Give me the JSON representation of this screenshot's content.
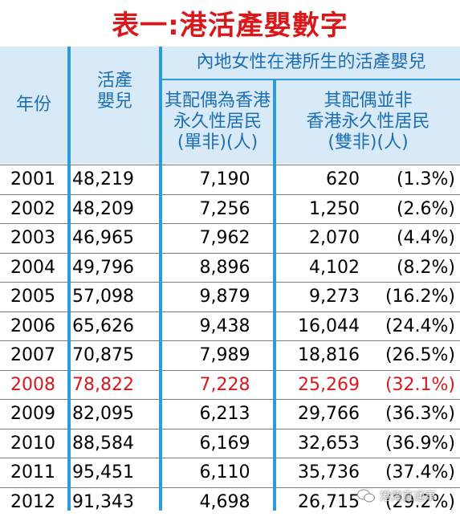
{
  "title": "表一:港活產嬰數字",
  "headers": {
    "year": "年份",
    "births_line1": "活產",
    "births_line2": "嬰兒",
    "mainland_group": "內地女性在港所生的活產嬰兒",
    "single_line1": "其配偶為香港",
    "single_line2": "永久性居民",
    "single_line3": "(單非)(人)",
    "double_line1": "其配偶並非",
    "double_line2": "香港永久性居民",
    "double_line3": "(雙非)(人)"
  },
  "rows": [
    {
      "year": "2001",
      "births": "48,219",
      "single": "7,190",
      "double": "620",
      "pct": "(1.3%)",
      "highlight": false
    },
    {
      "year": "2002",
      "births": "48,209",
      "single": "7,256",
      "double": "1,250",
      "pct": "(2.6%)",
      "highlight": false
    },
    {
      "year": "2003",
      "births": "46,965",
      "single": "7,962",
      "double": "2,070",
      "pct": "(4.4%)",
      "highlight": false
    },
    {
      "year": "2004",
      "births": "49,796",
      "single": "8,896",
      "double": "4,102",
      "pct": "(8.2%)",
      "highlight": false
    },
    {
      "year": "2005",
      "births": "57,098",
      "single": "9,879",
      "double": "9,273",
      "pct": "(16.2%)",
      "highlight": false
    },
    {
      "year": "2006",
      "births": "65,626",
      "single": "9,438",
      "double": "16,044",
      "pct": "(24.4%)",
      "highlight": false
    },
    {
      "year": "2007",
      "births": "70,875",
      "single": "7,989",
      "double": "18,816",
      "pct": "(26.5%)",
      "highlight": false
    },
    {
      "year": "2008",
      "births": "78,822",
      "single": "7,228",
      "double": "25,269",
      "pct": "(32.1%)",
      "highlight": true
    },
    {
      "year": "2009",
      "births": "82,095",
      "single": "6,213",
      "double": "29,766",
      "pct": "(36.3%)",
      "highlight": false
    },
    {
      "year": "2010",
      "births": "88,584",
      "single": "6,169",
      "double": "32,653",
      "pct": "(36.9%)",
      "highlight": false
    },
    {
      "year": "2011",
      "births": "95,451",
      "single": "6,110",
      "double": "35,736",
      "pct": "(37.4%)",
      "highlight": false
    },
    {
      "year": "2012",
      "births": "91,343",
      "single": "4,698",
      "double": "26,715",
      "pct": "(29.2%)",
      "highlight": false
    }
  ],
  "watermark": "港灣直通車",
  "colors": {
    "title": "#d9181c",
    "header_bg": "#d8eaf7",
    "header_text": "#1d6fb4",
    "divider": "#2e9ad8",
    "highlight": "#d9181c"
  }
}
